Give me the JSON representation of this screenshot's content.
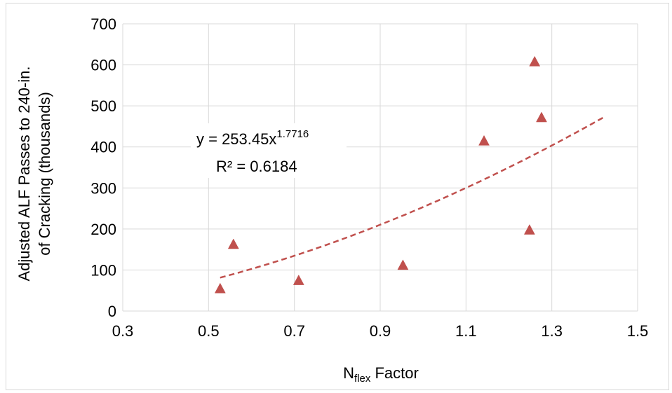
{
  "chart_data": {
    "type": "scatter",
    "title": "",
    "xlabel": {
      "main": "N",
      "sub": "flex",
      "rest": " Factor"
    },
    "ylabel": [
      "Adjusted  ALF Passes to 240-in.",
      "of Cracking (thousands)"
    ],
    "xlim": [
      0.3,
      1.5
    ],
    "ylim": [
      0,
      700
    ],
    "xticks": [
      "0.3",
      "0.5",
      "0.7",
      "0.9",
      "1.1",
      "1.3",
      "1.5"
    ],
    "xtick_values": [
      0.3,
      0.5,
      0.7,
      0.9,
      1.1,
      1.3,
      1.5
    ],
    "yticks": [
      "0",
      "100",
      "200",
      "300",
      "400",
      "500",
      "600",
      "700"
    ],
    "ytick_values": [
      0,
      100,
      200,
      300,
      400,
      500,
      600,
      700
    ],
    "grid": "major",
    "series": [
      {
        "marker": "triangle",
        "color": "#c0504d",
        "points": [
          {
            "x": 0.527,
            "y": 55
          },
          {
            "x": 0.558,
            "y": 163
          },
          {
            "x": 0.71,
            "y": 75
          },
          {
            "x": 0.953,
            "y": 112
          },
          {
            "x": 1.142,
            "y": 415
          },
          {
            "x": 1.248,
            "y": 198
          },
          {
            "x": 1.26,
            "y": 608
          },
          {
            "x": 1.276,
            "y": 472
          }
        ]
      }
    ],
    "trendline": {
      "type": "power",
      "coefficient": 253.45,
      "exponent": 1.7716,
      "x_range": [
        0.527,
        1.42
      ],
      "color": "#c0504d",
      "style": "dashed",
      "equation_prefix": "y = 253.45x",
      "equation_exponent": "1.7716",
      "r_squared_label": "R² = 0.6184"
    }
  }
}
